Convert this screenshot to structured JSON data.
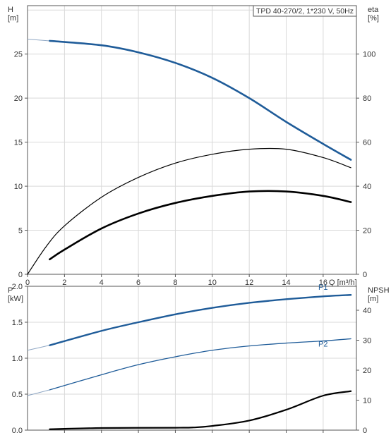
{
  "chart_data": [
    {
      "type": "line",
      "title": "TPD 40-270/2, 1*230 V, 50Hz",
      "xlabel": "Q [m³/h]",
      "ylabel_left": [
        "H",
        "[m]"
      ],
      "ylabel_right": [
        "eta",
        "[%]"
      ],
      "xlim": [
        0,
        17.8
      ],
      "ylim_left": [
        0,
        30.5
      ],
      "ylim_right": [
        0,
        122
      ],
      "x_ticks": [
        0,
        2,
        4,
        6,
        8,
        10,
        12,
        14,
        16
      ],
      "y_ticks_left": [
        0,
        5,
        10,
        15,
        20,
        25
      ],
      "y_ticks_right": [
        0,
        20,
        40,
        60,
        80,
        100
      ],
      "grid": true,
      "series": [
        {
          "name": "H",
          "axis": "left",
          "color": "#1f5c99",
          "extension": {
            "x": [
              0,
              1.2
            ],
            "y": [
              26.7,
              26.5
            ]
          },
          "x": [
            1.2,
            4,
            6,
            8,
            10,
            12,
            14,
            16,
            17.5
          ],
          "y": [
            26.5,
            26.0,
            25.2,
            24.0,
            22.3,
            20.0,
            17.3,
            14.8,
            13.0
          ]
        },
        {
          "name": "eta",
          "axis": "right",
          "color": "#000000",
          "x": [
            0,
            1,
            2,
            4,
            6,
            8,
            10,
            12,
            14,
            16,
            17.5
          ],
          "y": [
            0,
            12.5,
            22,
            35,
            44,
            50.5,
            54.5,
            56.8,
            56.8,
            53,
            48.4
          ]
        },
        {
          "name": "",
          "axis": "left",
          "color": "#000000",
          "x": [
            1.2,
            2,
            4,
            6,
            8,
            10,
            12,
            14,
            16,
            17.5
          ],
          "y": [
            1.7,
            2.8,
            5.2,
            6.9,
            8.1,
            8.9,
            9.4,
            9.4,
            8.9,
            8.2
          ]
        }
      ]
    },
    {
      "type": "line",
      "title": "",
      "ylabel_left": [
        "P",
        "[kW]"
      ],
      "ylabel_right": [
        "NPSH",
        "[m]"
      ],
      "xlim": [
        0,
        17.8
      ],
      "ylim_left": [
        0,
        2.0
      ],
      "ylim_right": [
        0,
        48
      ],
      "y_ticks_left": [
        0.0,
        0.5,
        1.0,
        1.5,
        2.0
      ],
      "y_ticks_left_labels": [
        "0.0",
        "0.5",
        "1.0",
        "1.5",
        "2.0"
      ],
      "y_ticks_right": [
        0,
        10,
        20,
        30,
        40
      ],
      "grid": true,
      "series": [
        {
          "name": "P1",
          "axis": "left",
          "color": "#1f5c99",
          "extension": {
            "x": [
              0,
              1.2
            ],
            "y": [
              1.11,
              1.18
            ]
          },
          "x": [
            1.2,
            4,
            6,
            8,
            10,
            12,
            14,
            16,
            17.5
          ],
          "y": [
            1.18,
            1.38,
            1.5,
            1.61,
            1.7,
            1.77,
            1.82,
            1.86,
            1.88
          ]
        },
        {
          "name": "P2",
          "axis": "left",
          "color": "#1f5c99",
          "extension": {
            "x": [
              0,
              1.2
            ],
            "y": [
              0.48,
              0.56
            ]
          },
          "x": [
            1.2,
            4,
            6,
            8,
            10,
            12,
            14,
            16,
            17.5
          ],
          "y": [
            0.56,
            0.77,
            0.91,
            1.02,
            1.11,
            1.17,
            1.21,
            1.24,
            1.27
          ]
        },
        {
          "name": "NPSH",
          "axis": "right",
          "color": "#000000",
          "x": [
            1.2,
            4,
            8,
            9,
            10,
            12,
            14,
            16,
            17.5
          ],
          "y": [
            0.3,
            0.7,
            0.8,
            0.9,
            1.4,
            3.2,
            6.8,
            11.5,
            13.0
          ]
        }
      ]
    }
  ]
}
